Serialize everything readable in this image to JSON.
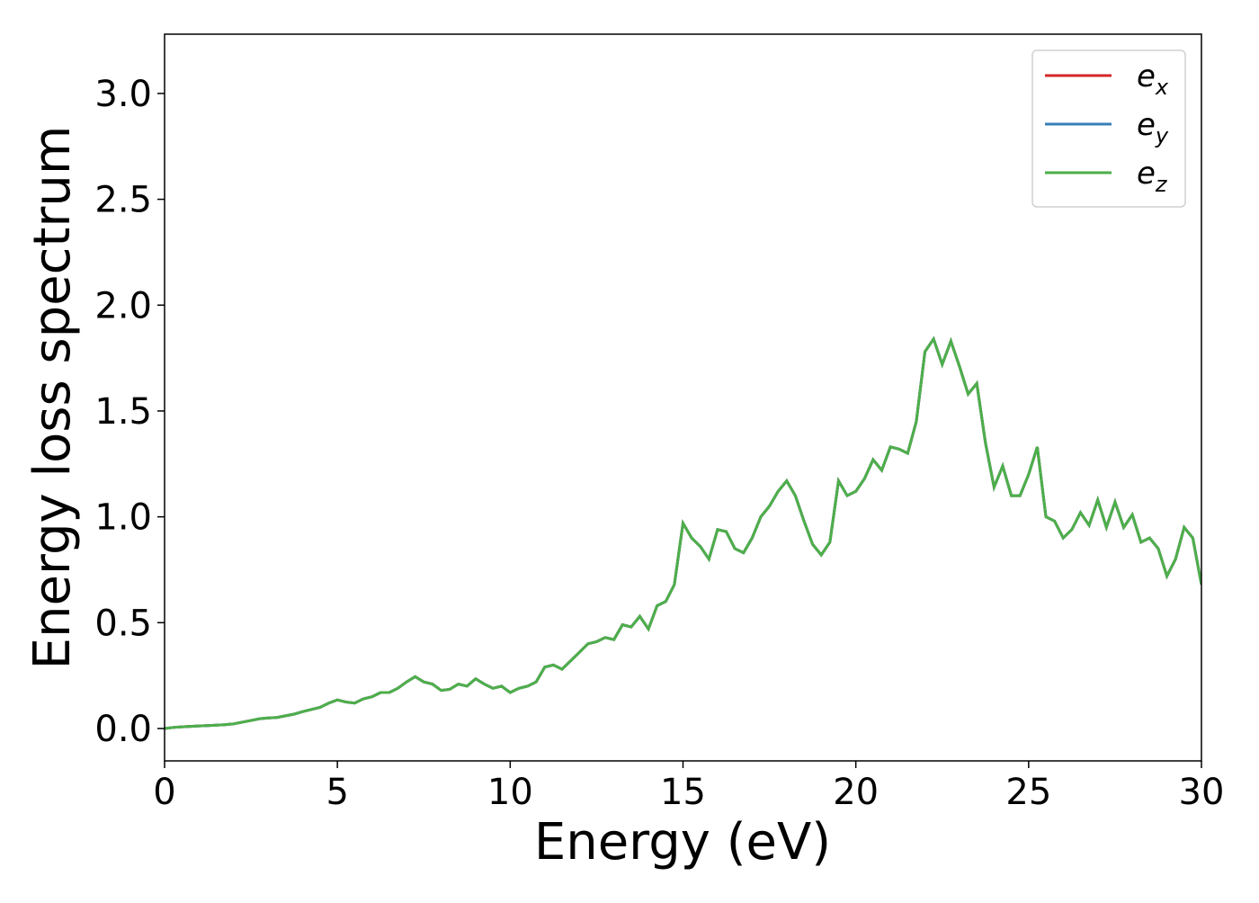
{
  "chart_data": {
    "type": "line",
    "xlabel": "Energy (eV)",
    "ylabel": "Energy loss spectrum",
    "x": [
      0,
      0.25,
      0.5,
      0.75,
      1,
      1.25,
      1.5,
      1.75,
      2,
      2.25,
      2.5,
      2.75,
      3,
      3.25,
      3.5,
      3.75,
      4,
      4.25,
      4.5,
      4.75,
      5,
      5.25,
      5.5,
      5.75,
      6,
      6.25,
      6.5,
      6.75,
      7,
      7.25,
      7.5,
      7.75,
      8,
      8.25,
      8.5,
      8.75,
      9,
      9.25,
      9.5,
      9.75,
      10,
      10.25,
      10.5,
      10.75,
      11,
      11.25,
      11.5,
      11.75,
      12,
      12.25,
      12.5,
      12.75,
      13,
      13.25,
      13.5,
      13.75,
      14,
      14.25,
      14.5,
      14.75,
      15,
      15.25,
      15.5,
      15.75,
      16,
      16.25,
      16.5,
      16.75,
      17,
      17.25,
      17.5,
      17.75,
      18,
      18.25,
      18.5,
      18.75,
      19,
      19.25,
      19.5,
      19.75,
      20,
      20.25,
      20.5,
      20.75,
      21,
      21.25,
      21.5,
      21.75,
      22,
      22.25,
      22.5,
      22.75,
      23,
      23.25,
      23.5,
      23.75,
      24,
      24.25,
      24.5,
      24.75,
      25,
      25.25,
      25.5,
      25.75,
      26,
      26.25,
      26.5,
      26.75,
      27,
      27.25,
      27.5,
      27.75,
      28,
      28.25,
      28.5,
      28.75,
      29,
      29.25,
      29.5,
      29.75,
      30
    ],
    "series": [
      {
        "name": "e_x",
        "color": "#d62728",
        "values": [
          0,
          0.005,
          0.008,
          0.01,
          0.012,
          0.014,
          0.016,
          0.018,
          0.022,
          0.03,
          0.038,
          0.046,
          0.05,
          0.052,
          0.06,
          0.068,
          0.08,
          0.09,
          0.1,
          0.12,
          0.135,
          0.125,
          0.12,
          0.14,
          0.15,
          0.17,
          0.17,
          0.19,
          0.22,
          0.245,
          0.22,
          0.21,
          0.18,
          0.185,
          0.21,
          0.2,
          0.235,
          0.21,
          0.19,
          0.2,
          0.17,
          0.19,
          0.2,
          0.22,
          0.29,
          0.3,
          0.28,
          0.32,
          0.36,
          0.4,
          0.41,
          0.43,
          0.42,
          0.49,
          0.48,
          0.53,
          0.47,
          0.58,
          0.6,
          0.68,
          0.97,
          0.9,
          0.86,
          0.8,
          0.94,
          0.93,
          0.85,
          0.83,
          0.9,
          1.0,
          1.05,
          1.12,
          1.17,
          1.1,
          0.98,
          0.87,
          0.82,
          0.88,
          1.17,
          1.1,
          1.12,
          1.18,
          1.27,
          1.22,
          1.33,
          1.32,
          1.3,
          1.45,
          1.78,
          1.84,
          1.72,
          1.83,
          1.71,
          1.58,
          1.63,
          1.35,
          1.14,
          1.24,
          1.1,
          1.1,
          1.2,
          1.33,
          1.0,
          0.98,
          0.9,
          0.94,
          1.02,
          0.96,
          1.08,
          0.95,
          1.07,
          0.95,
          1.01,
          0.88,
          0.9,
          0.85,
          0.72,
          0.8,
          0.95,
          0.9,
          0.68
        ]
      },
      {
        "name": "e_y",
        "color": "#377eb8",
        "values": [
          0,
          0.005,
          0.008,
          0.01,
          0.012,
          0.014,
          0.016,
          0.018,
          0.022,
          0.03,
          0.038,
          0.046,
          0.05,
          0.052,
          0.06,
          0.068,
          0.08,
          0.09,
          0.1,
          0.12,
          0.135,
          0.125,
          0.12,
          0.14,
          0.15,
          0.17,
          0.17,
          0.19,
          0.22,
          0.245,
          0.22,
          0.21,
          0.18,
          0.185,
          0.21,
          0.2,
          0.235,
          0.21,
          0.19,
          0.2,
          0.17,
          0.19,
          0.2,
          0.22,
          0.29,
          0.3,
          0.28,
          0.32,
          0.36,
          0.4,
          0.41,
          0.43,
          0.42,
          0.49,
          0.48,
          0.53,
          0.47,
          0.58,
          0.6,
          0.68,
          0.97,
          0.9,
          0.86,
          0.8,
          0.94,
          0.93,
          0.85,
          0.83,
          0.9,
          1.0,
          1.05,
          1.12,
          1.17,
          1.1,
          0.98,
          0.87,
          0.82,
          0.88,
          1.17,
          1.1,
          1.12,
          1.18,
          1.27,
          1.22,
          1.33,
          1.32,
          1.3,
          1.45,
          1.78,
          1.84,
          1.72,
          1.83,
          1.71,
          1.58,
          1.63,
          1.35,
          1.14,
          1.24,
          1.1,
          1.1,
          1.2,
          1.33,
          1.0,
          0.98,
          0.9,
          0.94,
          1.02,
          0.96,
          1.08,
          0.95,
          1.07,
          0.95,
          1.01,
          0.88,
          0.9,
          0.85,
          0.72,
          0.8,
          0.95,
          0.9,
          0.68
        ]
      },
      {
        "name": "e_z",
        "color": "#4daf4a",
        "values": [
          0,
          0.005,
          0.008,
          0.01,
          0.012,
          0.014,
          0.016,
          0.018,
          0.022,
          0.03,
          0.038,
          0.046,
          0.05,
          0.052,
          0.06,
          0.068,
          0.08,
          0.09,
          0.1,
          0.12,
          0.135,
          0.125,
          0.12,
          0.14,
          0.15,
          0.17,
          0.17,
          0.19,
          0.22,
          0.245,
          0.22,
          0.21,
          0.18,
          0.185,
          0.21,
          0.2,
          0.235,
          0.21,
          0.19,
          0.2,
          0.17,
          0.19,
          0.2,
          0.22,
          0.29,
          0.3,
          0.28,
          0.32,
          0.36,
          0.4,
          0.41,
          0.43,
          0.42,
          0.49,
          0.48,
          0.53,
          0.47,
          0.58,
          0.6,
          0.68,
          0.97,
          0.9,
          0.86,
          0.8,
          0.94,
          0.93,
          0.85,
          0.83,
          0.9,
          1.0,
          1.05,
          1.12,
          1.17,
          1.1,
          0.98,
          0.87,
          0.82,
          0.88,
          1.17,
          1.1,
          1.12,
          1.18,
          1.27,
          1.22,
          1.33,
          1.32,
          1.3,
          1.45,
          1.78,
          1.84,
          1.72,
          1.83,
          1.71,
          1.58,
          1.63,
          1.35,
          1.14,
          1.24,
          1.1,
          1.1,
          1.2,
          1.33,
          1.0,
          0.98,
          0.9,
          0.94,
          1.02,
          0.96,
          1.08,
          0.95,
          1.07,
          0.95,
          1.01,
          0.88,
          0.9,
          0.85,
          0.72,
          0.8,
          0.95,
          0.9,
          0.68
        ]
      }
    ],
    "xlim": [
      0,
      30
    ],
    "xticks": [
      0,
      5,
      10,
      15,
      20,
      25,
      30
    ],
    "ylim": [
      -0.153,
      3.28
    ],
    "yticks": [
      {
        "value": 0,
        "label": "0.0"
      },
      0.5,
      {
        "value": 1,
        "label": "1.0"
      },
      1.5,
      {
        "value": 2,
        "label": "2.0"
      },
      2.5,
      {
        "value": 3,
        "label": "3.0"
      }
    ],
    "legend": "upper right"
  }
}
